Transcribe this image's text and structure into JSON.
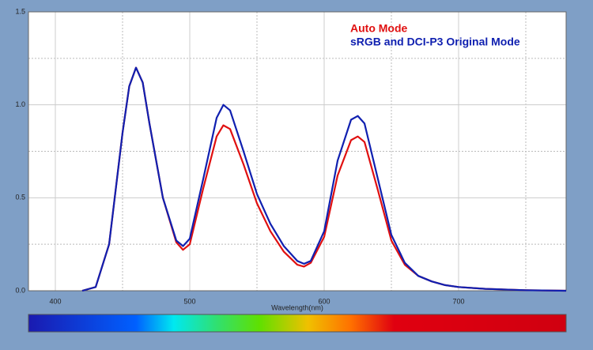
{
  "chart_data": {
    "type": "line",
    "x_label": "Wavelength(nm)",
    "x": [
      420,
      430,
      440,
      450,
      455,
      460,
      465,
      470,
      480,
      490,
      495,
      500,
      510,
      520,
      525,
      530,
      540,
      550,
      560,
      570,
      580,
      585,
      590,
      600,
      610,
      620,
      625,
      630,
      640,
      650,
      660,
      670,
      680,
      690,
      700,
      720,
      750,
      780
    ],
    "series": [
      {
        "name": "Auto Mode",
        "color": "#e01010",
        "values": [
          0,
          0.02,
          0.25,
          0.85,
          1.1,
          1.2,
          1.12,
          0.9,
          0.5,
          0.26,
          0.22,
          0.25,
          0.55,
          0.83,
          0.89,
          0.87,
          0.68,
          0.47,
          0.32,
          0.21,
          0.14,
          0.13,
          0.15,
          0.29,
          0.62,
          0.81,
          0.83,
          0.8,
          0.54,
          0.27,
          0.14,
          0.08,
          0.05,
          0.03,
          0.02,
          0.01,
          0.003,
          0
        ]
      },
      {
        "name": "sRGB and DCI-P3 Original Mode",
        "color": "#1020b0",
        "values": [
          0,
          0.02,
          0.25,
          0.85,
          1.1,
          1.2,
          1.12,
          0.9,
          0.5,
          0.27,
          0.24,
          0.28,
          0.6,
          0.93,
          1.0,
          0.97,
          0.75,
          0.52,
          0.36,
          0.24,
          0.16,
          0.145,
          0.16,
          0.32,
          0.7,
          0.92,
          0.94,
          0.9,
          0.6,
          0.3,
          0.15,
          0.08,
          0.05,
          0.03,
          0.02,
          0.01,
          0.003,
          0
        ]
      }
    ],
    "xlim": [
      380,
      780
    ],
    "xticks": [
      400,
      500,
      600,
      700
    ],
    "minor_xticks": [
      450,
      550,
      650,
      750
    ],
    "ylim": [
      0,
      1.5
    ],
    "yticks": [
      {
        "value": 0,
        "label": "0.0"
      },
      0.5,
      {
        "value": 1,
        "label": "1.0"
      },
      1.5
    ],
    "minor_yticks": [
      0.25,
      0.75,
      1.25
    ],
    "grid": true
  }
}
